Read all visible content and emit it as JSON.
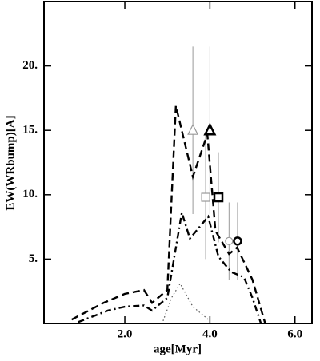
{
  "chart_data": {
    "type": "line",
    "xlabel": "age[Myr]",
    "ylabel": "EW(WRbump)[A]",
    "xlim": [
      0.1,
      6.4
    ],
    "ylim": [
      0,
      25
    ],
    "xticks": [
      {
        "value": 2,
        "label": "2.0"
      },
      {
        "value": 4,
        "label": "4.0"
      },
      {
        "value": 6,
        "label": "6.0"
      }
    ],
    "yticks": [
      {
        "value": 5,
        "label": "5."
      },
      {
        "value": 10,
        "label": "10."
      },
      {
        "value": 15,
        "label": "15."
      },
      {
        "value": 20,
        "label": "20."
      }
    ],
    "series": [
      {
        "color": "#000000",
        "style": "dashed",
        "x": [
          0.75,
          1.5,
          2.0,
          2.45,
          2.64,
          3.0,
          3.2,
          3.6,
          3.94,
          4.13,
          4.45,
          4.64,
          5.0,
          5.3
        ],
        "values": [
          0.3,
          1.6,
          2.3,
          2.6,
          1.6,
          2.6,
          16.9,
          11.4,
          14.7,
          7.2,
          5.4,
          5.9,
          3.4,
          0
        ]
      },
      {
        "color": "#000000",
        "style": "dashdot",
        "x": [
          0.9,
          1.6,
          2.0,
          2.45,
          2.64,
          3.0,
          3.34,
          3.53,
          3.96,
          4.2,
          4.5,
          4.8,
          5.0,
          5.2
        ],
        "values": [
          0.1,
          1.0,
          1.3,
          1.4,
          1.0,
          2.0,
          8.6,
          6.6,
          8.3,
          5.2,
          4.0,
          3.6,
          2.0,
          0
        ]
      },
      {
        "color": "#555555",
        "style": "dotted",
        "x": [
          2.9,
          3.1,
          3.3,
          3.6,
          4.0
        ],
        "values": [
          0.2,
          2.0,
          3.1,
          1.3,
          0.2
        ]
      }
    ],
    "points": [
      {
        "x": 3.6,
        "y": 15.0,
        "yerr": 6.5,
        "marker": "triangle",
        "color": "#999999"
      },
      {
        "x": 4.0,
        "y": 15.0,
        "yerr": 6.5,
        "marker": "triangle",
        "color": "#000000"
      },
      {
        "x": 3.9,
        "y": 9.8,
        "yerr": 4.8,
        "marker": "square",
        "color": "#999999"
      },
      {
        "x": 4.2,
        "y": 9.8,
        "yerr": 3.5,
        "marker": "square",
        "color": "#000000"
      },
      {
        "x": 4.45,
        "y": 6.4,
        "yerr": 3.0,
        "marker": "circle",
        "color": "#999999"
      },
      {
        "x": 4.65,
        "y": 6.4,
        "yerr": 3.0,
        "marker": "circle",
        "color": "#000000"
      }
    ]
  }
}
